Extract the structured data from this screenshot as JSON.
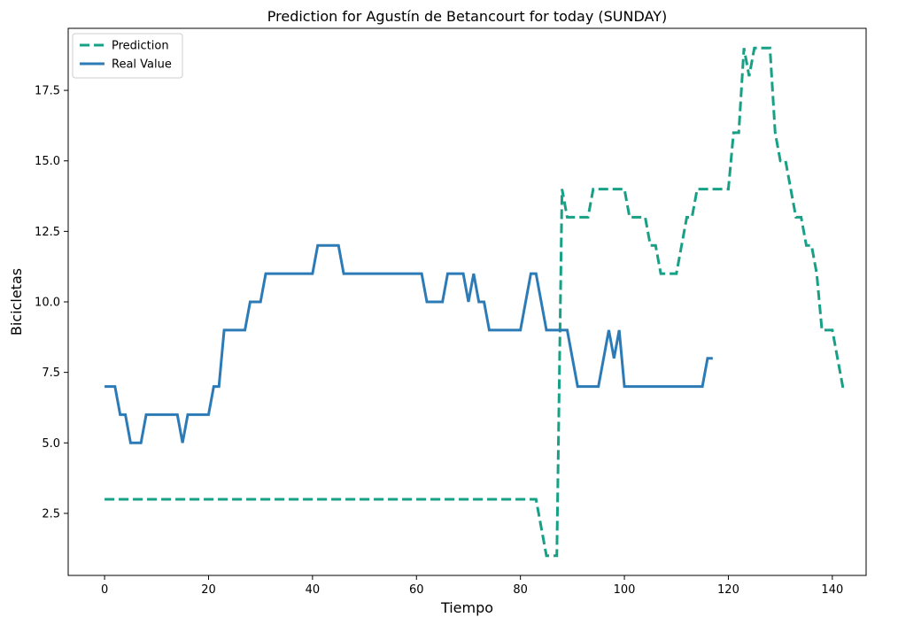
{
  "chart_data": {
    "type": "line",
    "title": "Prediction for Agustín de Betancourt for today (SUNDAY)",
    "xlabel": "Tiempo",
    "ylabel": "Bicicletas",
    "xlim": [
      -7,
      146.5
    ],
    "ylim": [
      0.3,
      19.7
    ],
    "xticks": [
      0,
      20,
      40,
      60,
      80,
      100,
      120,
      140
    ],
    "yticks": [
      2.5,
      5.0,
      7.5,
      10.0,
      12.5,
      15.0,
      17.5
    ],
    "xtick_labels": [
      "0",
      "20",
      "40",
      "60",
      "80",
      "100",
      "120",
      "140"
    ],
    "ytick_labels": [
      "2.5",
      "5.0",
      "7.5",
      "10.0",
      "12.5",
      "15.0",
      "17.5"
    ],
    "grid": false,
    "legend_position": "top-left",
    "series": [
      {
        "name": "Prediction",
        "color": "#17a085",
        "style": "dashed",
        "x": [
          0,
          1,
          2,
          3,
          4,
          5,
          6,
          7,
          8,
          9,
          10,
          11,
          12,
          13,
          14,
          15,
          16,
          17,
          18,
          19,
          20,
          21,
          22,
          23,
          24,
          25,
          26,
          27,
          28,
          29,
          30,
          31,
          32,
          33,
          34,
          35,
          36,
          37,
          38,
          39,
          40,
          41,
          42,
          43,
          44,
          45,
          46,
          47,
          48,
          49,
          50,
          51,
          52,
          53,
          54,
          55,
          56,
          57,
          58,
          59,
          60,
          61,
          62,
          63,
          64,
          65,
          66,
          67,
          68,
          69,
          70,
          71,
          72,
          73,
          74,
          75,
          76,
          77,
          78,
          79,
          80,
          81,
          82,
          83,
          84,
          85,
          86,
          87,
          88,
          89,
          90,
          91,
          92,
          93,
          94,
          95,
          96,
          97,
          98,
          99,
          100,
          101,
          102,
          103,
          104,
          105,
          106,
          107,
          108,
          109,
          110,
          111,
          112,
          113,
          114,
          115,
          116,
          117,
          118,
          119,
          120,
          121,
          122,
          123,
          124,
          125,
          126,
          127,
          128,
          129,
          130,
          131,
          132,
          133,
          134,
          135,
          136,
          137,
          138,
          139,
          140,
          141,
          142,
          143
        ],
        "values": [
          3,
          3,
          3,
          3,
          3,
          3,
          3,
          3,
          3,
          3,
          3,
          3,
          3,
          3,
          3,
          3,
          3,
          3,
          3,
          3,
          3,
          3,
          3,
          3,
          3,
          3,
          3,
          3,
          3,
          3,
          3,
          3,
          3,
          3,
          3,
          3,
          3,
          3,
          3,
          3,
          3,
          3,
          3,
          3,
          3,
          3,
          3,
          3,
          3,
          3,
          3,
          3,
          3,
          3,
          3,
          3,
          3,
          3,
          3,
          3,
          3,
          3,
          3,
          3,
          3,
          3,
          3,
          3,
          3,
          3,
          3,
          3,
          3,
          3,
          3,
          3,
          3,
          3,
          3,
          3,
          3,
          3,
          3,
          3,
          2,
          1,
          1,
          1,
          14,
          13,
          13,
          13,
          13,
          13,
          14,
          14,
          14,
          14,
          14,
          14,
          14,
          13,
          13,
          13,
          13,
          12,
          12,
          11,
          11,
          11,
          11,
          12,
          13,
          13,
          14,
          14,
          14,
          14,
          14,
          14,
          14,
          16,
          16,
          19,
          18,
          19,
          19,
          19,
          19,
          16,
          15,
          15,
          14,
          13,
          13,
          12,
          12,
          11,
          9,
          9,
          9,
          8,
          7,
          7
        ]
      },
      {
        "name": "Real Value",
        "color": "#2c7bb6",
        "style": "solid",
        "x": [
          0,
          1,
          2,
          3,
          4,
          5,
          6,
          7,
          8,
          9,
          10,
          11,
          12,
          13,
          14,
          15,
          16,
          17,
          18,
          19,
          20,
          21,
          22,
          23,
          24,
          25,
          26,
          27,
          28,
          29,
          30,
          31,
          32,
          33,
          34,
          35,
          36,
          37,
          38,
          39,
          40,
          41,
          42,
          43,
          44,
          45,
          46,
          47,
          48,
          49,
          50,
          51,
          52,
          53,
          54,
          55,
          56,
          57,
          58,
          59,
          60,
          61,
          62,
          63,
          64,
          65,
          66,
          67,
          68,
          69,
          70,
          71,
          72,
          73,
          74,
          75,
          76,
          77,
          78,
          79,
          80,
          81,
          82,
          83,
          84,
          85,
          86,
          87,
          88,
          89,
          90,
          91,
          92,
          93,
          94,
          95,
          96,
          97,
          98,
          99,
          100,
          101,
          102,
          103,
          104,
          105,
          106,
          107,
          108,
          109,
          110,
          111,
          112,
          113,
          114,
          115,
          116,
          117
        ],
        "values": [
          7,
          7,
          7,
          6,
          6,
          5,
          5,
          5,
          6,
          6,
          6,
          6,
          6,
          6,
          6,
          5,
          6,
          6,
          6,
          6,
          6,
          7,
          7,
          9,
          9,
          9,
          9,
          9,
          10,
          10,
          10,
          11,
          11,
          11,
          11,
          11,
          11,
          11,
          11,
          11,
          11,
          12,
          12,
          12,
          12,
          12,
          11,
          11,
          11,
          11,
          11,
          11,
          11,
          11,
          11,
          11,
          11,
          11,
          11,
          11,
          11,
          11,
          10,
          10,
          10,
          10,
          11,
          11,
          11,
          11,
          10,
          11,
          10,
          10,
          9,
          9,
          9,
          9,
          9,
          9,
          9,
          10,
          11,
          11,
          10,
          9,
          9,
          9,
          9,
          9,
          8,
          7,
          7,
          7,
          7,
          7,
          8,
          9,
          8,
          9,
          7,
          7,
          7,
          7,
          7,
          7,
          7,
          7,
          7,
          7,
          7,
          7,
          7,
          7,
          7,
          7,
          8,
          8
        ]
      }
    ]
  }
}
